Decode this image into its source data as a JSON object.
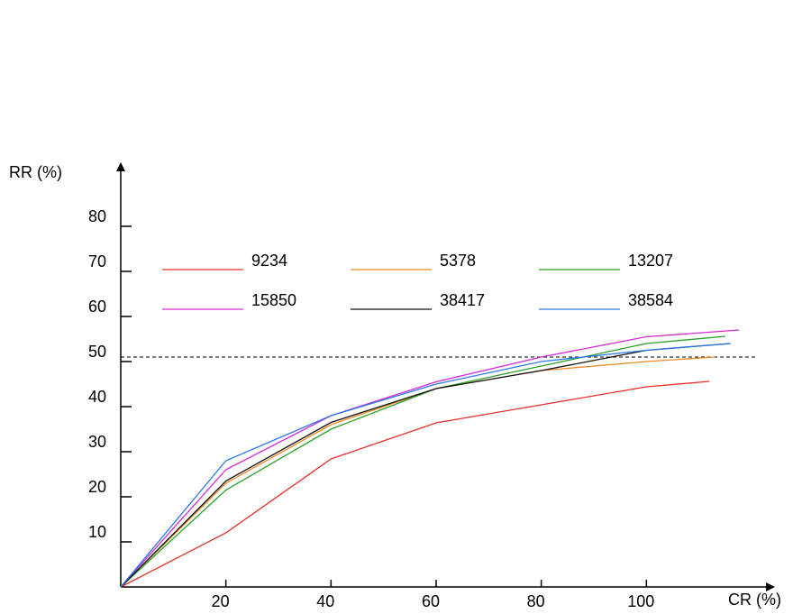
{
  "chart_data": {
    "type": "line",
    "xlabel": "CR (%)",
    "ylabel": "RR (%)",
    "xlim": [
      0,
      123
    ],
    "ylim": [
      0,
      93
    ],
    "xticks": [
      20,
      40,
      60,
      80,
      100
    ],
    "yticks": [
      10,
      20,
      30,
      40,
      50,
      60,
      70,
      80
    ],
    "reference_line": 51,
    "series": [
      {
        "name": "9234",
        "color": "#e8302a",
        "x": [
          0,
          20,
          40,
          60,
          80,
          100,
          112
        ],
        "values": [
          0,
          12,
          28.4,
          36.4,
          40.4,
          44.4,
          45.6
        ]
      },
      {
        "name": "5378",
        "color": "#f08a24",
        "x": [
          0,
          20,
          40,
          60,
          80,
          100,
          113
        ],
        "values": [
          0,
          23,
          36,
          44,
          48,
          50,
          51
        ]
      },
      {
        "name": "13207",
        "color": "#2aa02a",
        "x": [
          0,
          20,
          40,
          60,
          80,
          100,
          115
        ],
        "values": [
          0,
          21.5,
          35,
          44,
          49,
          54,
          55.6
        ]
      },
      {
        "name": "15850",
        "color": "#d62ad6",
        "x": [
          0,
          20,
          40,
          60,
          80,
          100,
          117.6
        ],
        "values": [
          0,
          26,
          38,
          45.5,
          51,
          55.5,
          57
        ]
      },
      {
        "name": "38417",
        "color": "#111111",
        "x": [
          0,
          20,
          40,
          60,
          80,
          100,
          116
        ],
        "values": [
          0,
          23.5,
          36.5,
          44,
          48,
          52.5,
          54
        ]
      },
      {
        "name": "38584",
        "color": "#2a7ae8",
        "x": [
          0,
          20,
          40,
          60,
          80,
          100,
          116
        ],
        "values": [
          0,
          28,
          38,
          45,
          50,
          52.5,
          54
        ]
      }
    ]
  }
}
